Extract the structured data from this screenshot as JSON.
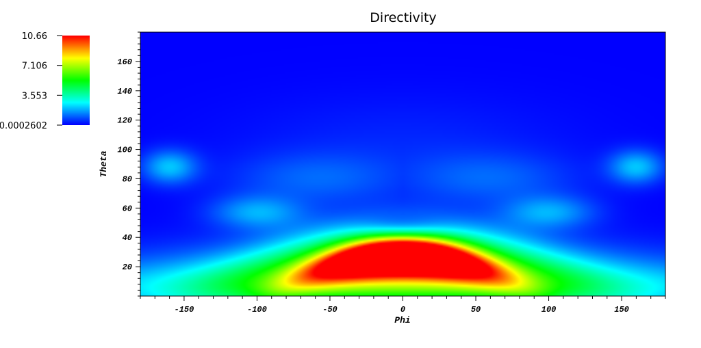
{
  "chart_data": {
    "type": "heatmap",
    "title": "Directivity",
    "xlabel": "Phi",
    "ylabel": "Theta",
    "xlim": [
      -180,
      180
    ],
    "ylim": [
      0,
      180
    ],
    "x_ticks": [
      -150,
      -100,
      -50,
      0,
      50,
      100,
      150
    ],
    "y_ticks": [
      20,
      40,
      60,
      80,
      100,
      120,
      140,
      160
    ],
    "colorbar": {
      "min": 0.0002602,
      "max": 10.66,
      "labels": [
        "10.66",
        "7.106",
        "3.553",
        "0.0002602"
      ],
      "label_values": [
        10.66,
        7.106,
        3.553,
        0.0002602
      ],
      "colormap": "rainbow blue-cyan-green-yellow-red"
    },
    "features": [
      {
        "phi": 0,
        "theta": 27,
        "value": 10.66,
        "note": "main lobe"
      },
      {
        "phi": 0,
        "theta": 47,
        "value": 0.5
      },
      {
        "phi": -160,
        "theta": 88,
        "value": 2.2
      },
      {
        "phi": 160,
        "theta": 88,
        "value": 2.2
      },
      {
        "phi": 0,
        "theta": 150,
        "value": 0.3
      }
    ]
  }
}
